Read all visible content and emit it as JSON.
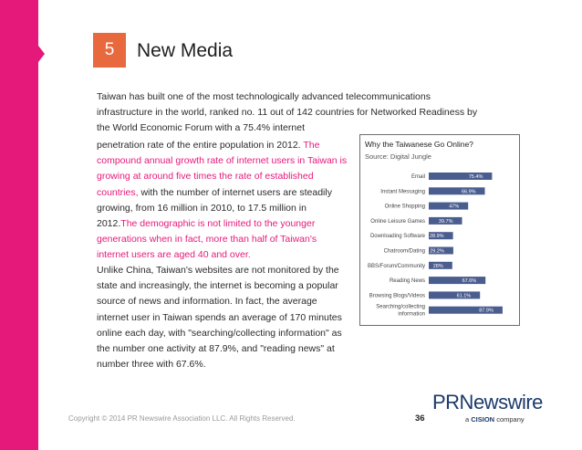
{
  "section": {
    "number": "5",
    "title": "New Media"
  },
  "paragraphs": {
    "p1": "Taiwan has built one of the most technologically advanced telecommunications infrastructure in the world, ranked no. 11 out of 142 countries for Networked Readiness by the World Economic Forum with a 75.4% internet",
    "p2_a": "penetration rate of the entire population in 2012.",
    "p2_b": "The compound annual growth rate of internet users in Taiwan is growing at around five times the rate of established countries,",
    "p2_c": " with the number of internet users are steadily growing, from 16 million in 2010, to 17.5 million in 2012.",
    "p2_d": "The demographic is not limited to the younger generations when in fact, more than half of Taiwan's internet users are aged 40 and over.",
    "p3": "Unlike China, Taiwan's websites are not monitored by the state and increasingly, the internet is becoming a popular source of news and information. In fact, the average internet user in Taiwan spends an average of 170 minutes online each day, with \"searching/collecting information\" as the number one activity at 87.9%, and \"reading news\" at number three with 67.6%."
  },
  "chart_data": {
    "type": "bar",
    "orientation": "horizontal",
    "title": "Why the Taiwanese Go Online?",
    "subtitle": "Source: Digital Jungle",
    "categories": [
      "Email",
      "Instant Messaging",
      "Online Shopping",
      "Online Leisure Games",
      "Downloading Software",
      "Chatroom/Dating",
      "BBS/Forum/Community",
      "Reading News",
      "Browsing Blogs/Videos",
      "Searching/collecting information"
    ],
    "values": [
      75.4,
      66.9,
      47,
      39.7,
      28.9,
      29.2,
      28,
      67.6,
      61.1,
      87.9
    ],
    "value_labels": [
      "75.4%",
      "66.9%",
      "47%",
      "39.7%",
      "28.9%",
      "29.2%",
      "28%",
      "67.6%",
      "61.1%",
      "87.9%"
    ],
    "xlim": [
      0,
      100
    ],
    "bar_color": "#4a5d8f"
  },
  "footer": {
    "copyright": "Copyright © 2014 PR Newswire Association LLC. All Rights Reserved.",
    "page_number": "36",
    "brand_main": "PRNewswire",
    "brand_sub_prefix": "a",
    "brand_sub_cision": "CISION",
    "brand_sub_suffix": " company"
  },
  "colors": {
    "accent": "#e5197a",
    "badge": "#e8693e",
    "brand": "#1b3a6b"
  }
}
